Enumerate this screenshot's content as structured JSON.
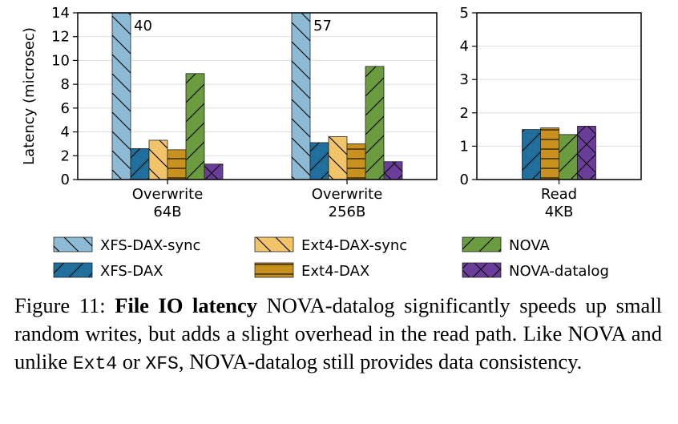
{
  "chart_data": [
    {
      "type": "bar",
      "ylabel": "Latency (microsec)",
      "categories": [
        "Overwrite\n64B",
        "Overwrite\n256B"
      ],
      "ylim": [
        0,
        14
      ],
      "yticks": [
        0,
        2,
        4,
        6,
        8,
        10,
        12,
        14
      ],
      "grid": true,
      "series": [
        {
          "name": "XFS-DAX-sync",
          "color": "#8dbbd6",
          "hatch": "\\",
          "values": [
            40,
            57
          ],
          "value_labels": [
            "40",
            "57"
          ]
        },
        {
          "name": "XFS-DAX",
          "color": "#1f6e9c",
          "hatch": "/",
          "values": [
            2.6,
            3.1
          ]
        },
        {
          "name": "Ext4-DAX-sync",
          "color": "#f2c46a",
          "hatch": "\\",
          "values": [
            3.3,
            3.6
          ]
        },
        {
          "name": "Ext4-DAX",
          "color": "#c9921f",
          "hatch": "-",
          "values": [
            2.5,
            3.0
          ]
        },
        {
          "name": "NOVA",
          "color": "#6b9b3f",
          "hatch": "/",
          "values": [
            8.9,
            9.5
          ]
        },
        {
          "name": "NOVA-datalog",
          "color": "#6a3d9a",
          "hatch": "x",
          "values": [
            1.3,
            1.5
          ]
        }
      ]
    },
    {
      "type": "bar",
      "categories": [
        "Read\n4KB"
      ],
      "ylim": [
        0,
        5
      ],
      "yticks": [
        0,
        1,
        2,
        3,
        4,
        5
      ],
      "grid": true,
      "series": [
        {
          "name": "XFS-DAX",
          "color": "#1f6e9c",
          "hatch": "/",
          "values": [
            1.5
          ]
        },
        {
          "name": "Ext4-DAX",
          "color": "#c9921f",
          "hatch": "-",
          "values": [
            1.55
          ]
        },
        {
          "name": "NOVA",
          "color": "#6b9b3f",
          "hatch": "/",
          "values": [
            1.35
          ]
        },
        {
          "name": "NOVA-datalog",
          "color": "#6a3d9a",
          "hatch": "x",
          "values": [
            1.6
          ]
        }
      ]
    }
  ],
  "caption": [
    {
      "text": "Figure 11: ",
      "style": "normal"
    },
    {
      "text": "File IO latency",
      "style": "bold"
    },
    {
      "text": " NOVA-datalog significantly speeds up small random writes, but adds a slight overhead in the read path. Like NOVA and unlike ",
      "style": "normal"
    },
    {
      "text": "Ext4",
      "style": "mono"
    },
    {
      "text": " or ",
      "style": "normal"
    },
    {
      "text": "XFS",
      "style": "mono"
    },
    {
      "text": ", NOVA-datalog still provides data consistency.",
      "style": "normal"
    }
  ]
}
